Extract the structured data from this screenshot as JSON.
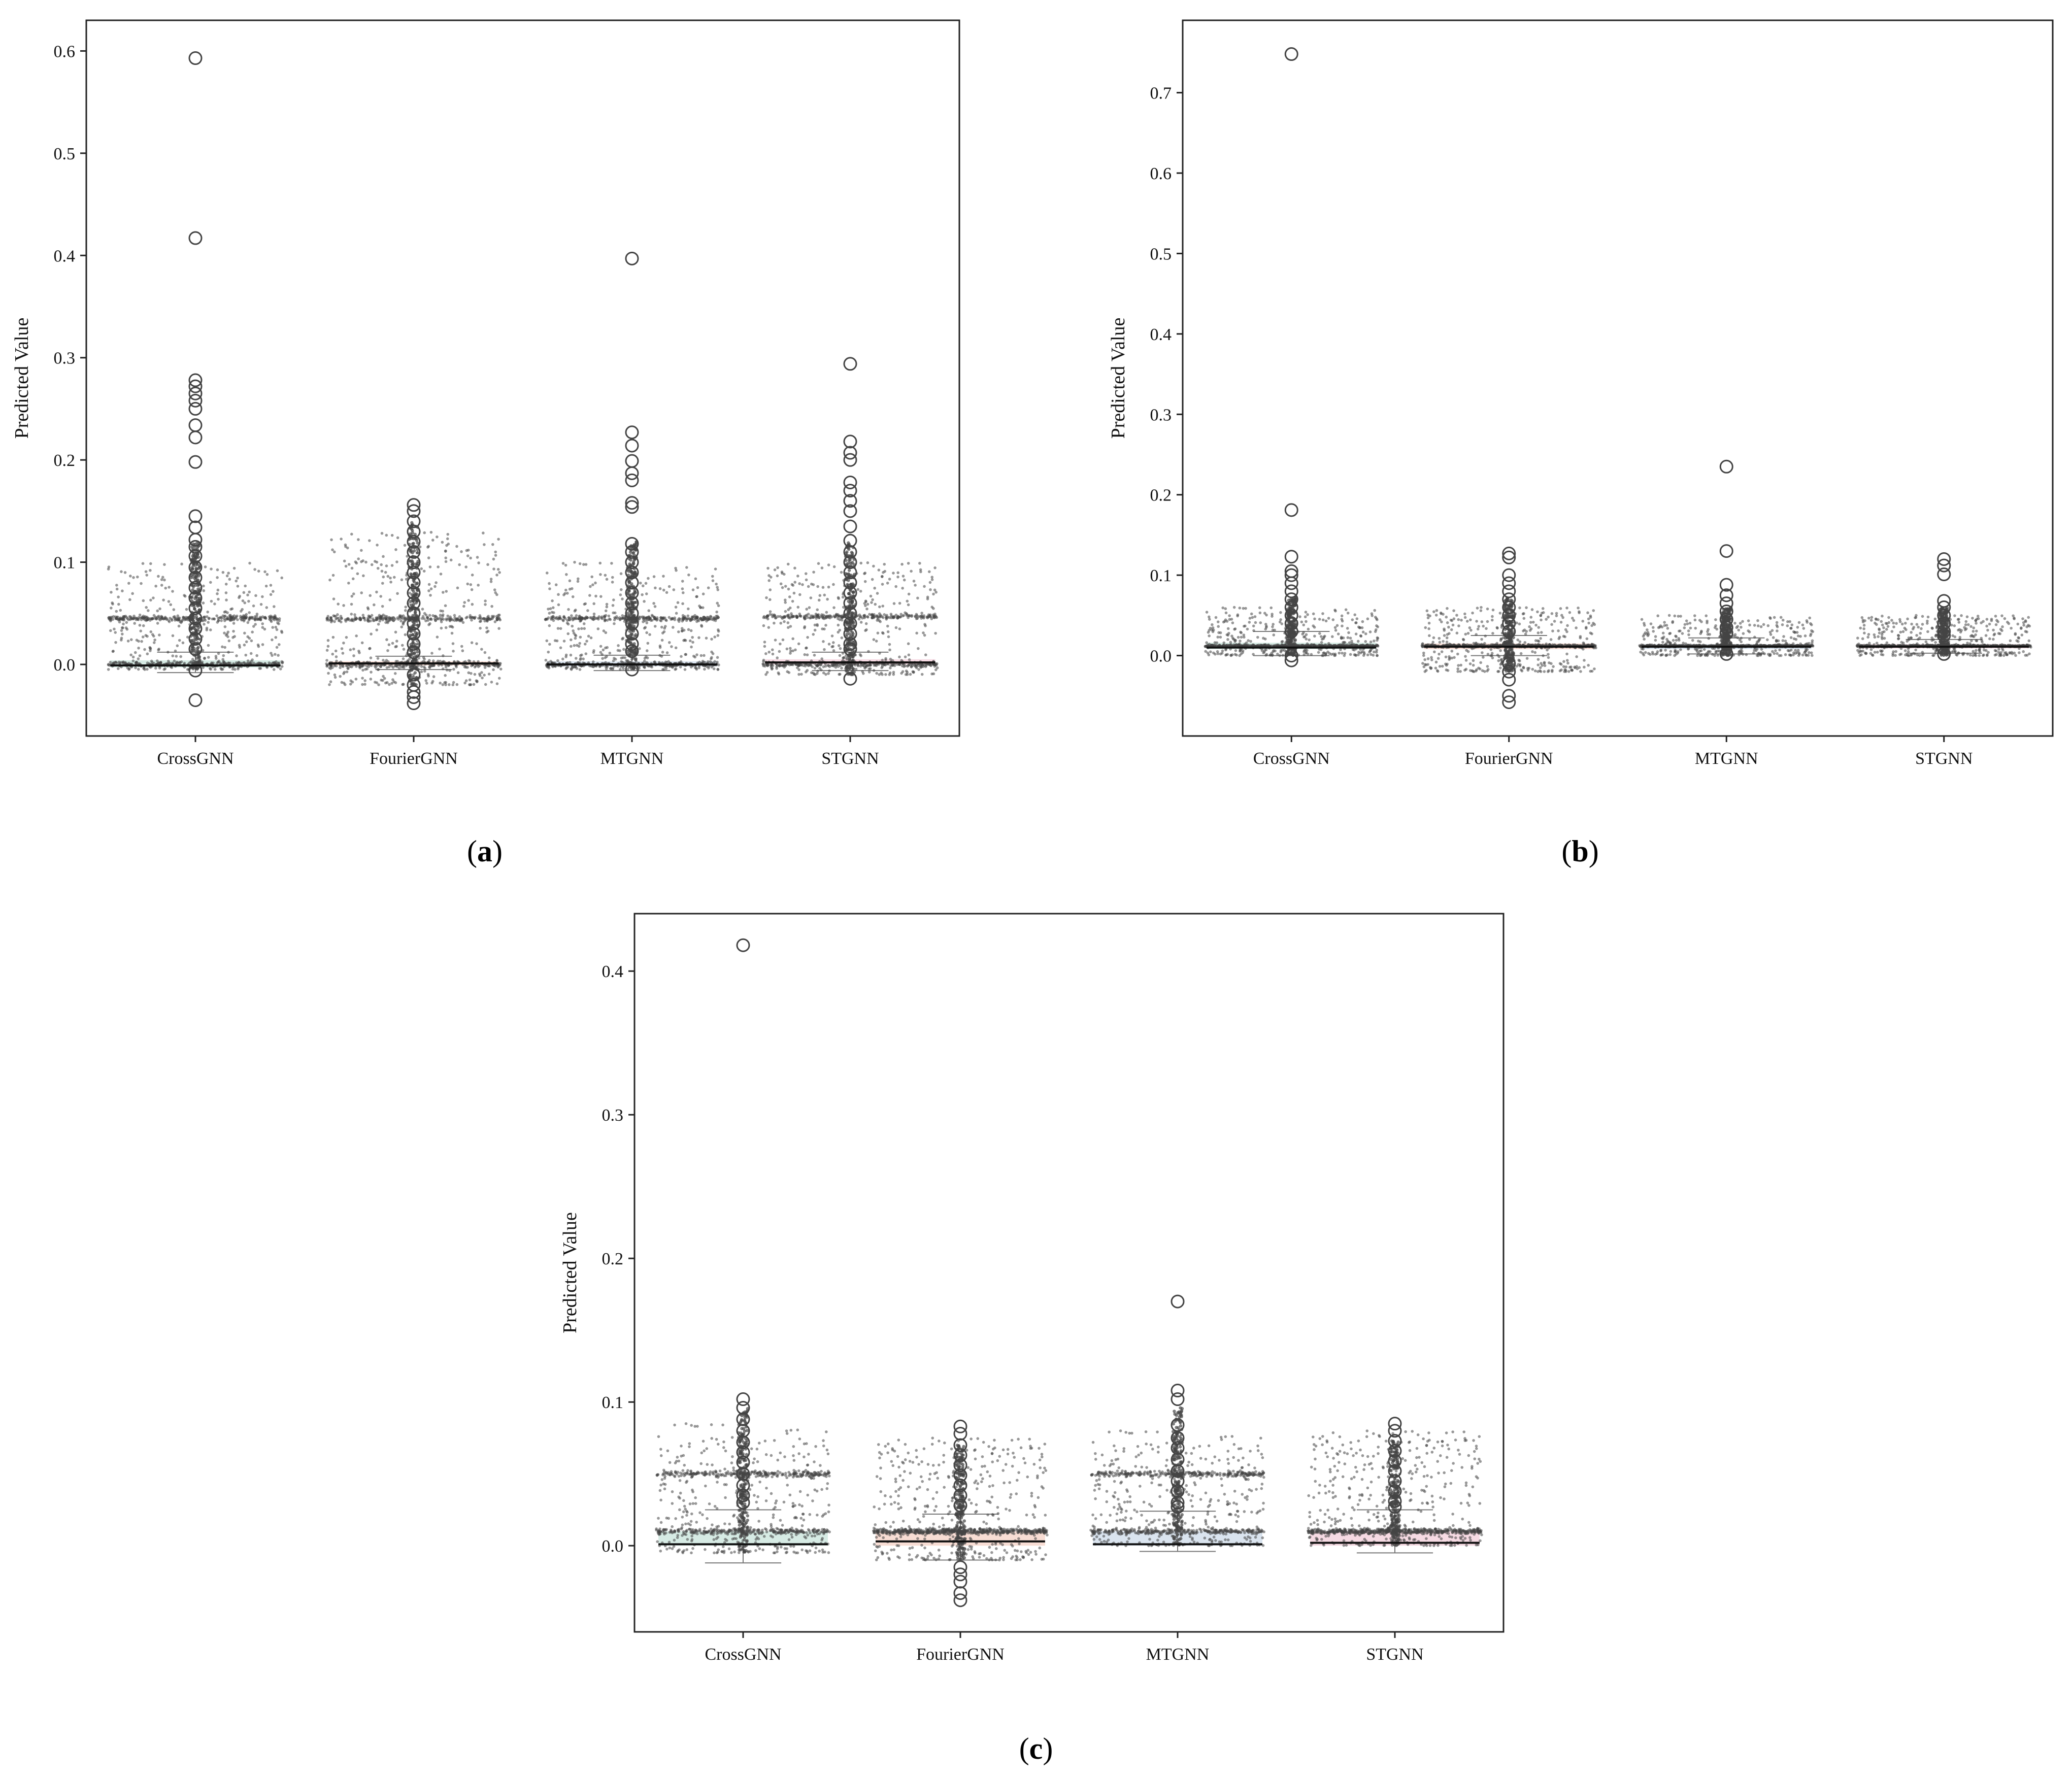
{
  "chart_data": [
    {
      "type": "box",
      "panel": "a",
      "caption": {
        "open": "(",
        "letter": "a",
        "close": ")"
      },
      "ylabel": "Predicted Value",
      "ylim": [
        -0.07,
        0.63
      ],
      "yticks": [
        0.0,
        0.1,
        0.2,
        0.3,
        0.4,
        0.5,
        0.6
      ],
      "ytick_labels": [
        "0.0",
        "0.1",
        "0.2",
        "0.3",
        "0.4",
        "0.5",
        "0.6"
      ],
      "categories": [
        "CrossGNN",
        "FourierGNN",
        "MTGNN",
        "STGNN"
      ],
      "box_colors": [
        "#cfe8df",
        "#f7d7cc",
        "#d3dfec",
        "#f5d3de"
      ],
      "series": [
        {
          "name": "CrossGNN",
          "median": -0.001,
          "q1": -0.003,
          "q3": 0.004,
          "whisker_low": -0.008,
          "whisker_high": 0.012,
          "cluster_levels": [
            0.0,
            0.045
          ],
          "scatter_range": [
            -0.005,
            0.1
          ],
          "outliers": [
            0.593,
            0.417,
            0.278,
            0.272,
            0.265,
            0.258,
            0.25,
            0.234,
            0.222,
            0.198,
            0.145,
            0.134,
            0.122,
            0.115,
            0.106,
            0.095,
            0.085,
            0.075,
            0.065,
            0.055,
            0.045,
            0.035,
            0.025,
            0.015,
            -0.006,
            -0.035
          ]
        },
        {
          "name": "FourierGNN",
          "median": 0.001,
          "q1": -0.001,
          "q3": 0.003,
          "whisker_low": -0.005,
          "whisker_high": 0.008,
          "cluster_levels": [
            0.0,
            0.045
          ],
          "scatter_range": [
            -0.02,
            0.13
          ],
          "outliers": [
            0.156,
            0.15,
            0.14,
            0.13,
            0.12,
            0.11,
            0.1,
            0.09,
            0.08,
            0.07,
            0.06,
            0.05,
            0.04,
            0.03,
            0.02,
            0.012,
            -0.01,
            -0.02,
            -0.027,
            -0.032,
            -0.038
          ]
        },
        {
          "name": "MTGNN",
          "median": 0.0,
          "q1": -0.002,
          "q3": 0.003,
          "whisker_low": -0.006,
          "whisker_high": 0.009,
          "cluster_levels": [
            0.0,
            0.045
          ],
          "scatter_range": [
            -0.005,
            0.1
          ],
          "outliers": [
            0.397,
            0.227,
            0.214,
            0.199,
            0.187,
            0.18,
            0.158,
            0.154,
            0.118,
            0.11,
            0.1,
            0.09,
            0.08,
            0.07,
            0.06,
            0.05,
            0.04,
            0.03,
            0.02,
            0.013,
            -0.005
          ]
        },
        {
          "name": "STGNN",
          "median": 0.002,
          "q1": 0.0,
          "q3": 0.005,
          "whisker_low": -0.006,
          "whisker_high": 0.012,
          "cluster_levels": [
            0.0,
            0.047
          ],
          "scatter_range": [
            -0.01,
            0.1
          ],
          "outliers": [
            0.294,
            0.218,
            0.207,
            0.2,
            0.178,
            0.17,
            0.16,
            0.15,
            0.135,
            0.121,
            0.11,
            0.1,
            0.09,
            0.08,
            0.07,
            0.06,
            0.05,
            0.04,
            0.03,
            0.02,
            0.015,
            -0.014
          ]
        }
      ]
    },
    {
      "type": "box",
      "panel": "b",
      "caption": {
        "open": "(",
        "letter": "b",
        "close": ")"
      },
      "ylabel": "Predicted Value",
      "ylim": [
        -0.1,
        0.79
      ],
      "yticks": [
        0.0,
        0.1,
        0.2,
        0.3,
        0.4,
        0.5,
        0.6,
        0.7
      ],
      "ytick_labels": [
        "0.0",
        "0.1",
        "0.2",
        "0.3",
        "0.4",
        "0.5",
        "0.6",
        "0.7"
      ],
      "categories": [
        "CrossGNN",
        "FourierGNN",
        "MTGNN",
        "STGNN"
      ],
      "box_colors": [
        "#cfe8df",
        "#f7d7cc",
        "#d3dfec",
        "#f5d3de"
      ],
      "series": [
        {
          "name": "CrossGNN",
          "median": 0.01,
          "q1": 0.008,
          "q3": 0.016,
          "whisker_low": 0.0,
          "whisker_high": 0.03,
          "cluster_levels": [
            0.012
          ],
          "scatter_range": [
            0.0,
            0.06
          ],
          "outliers": [
            0.748,
            0.181,
            0.123,
            0.105,
            0.1,
            0.09,
            0.08,
            0.07,
            0.06,
            0.05,
            0.04,
            0.03,
            0.0,
            -0.006
          ]
        },
        {
          "name": "FourierGNN",
          "median": 0.011,
          "q1": 0.008,
          "q3": 0.015,
          "whisker_low": 0.0,
          "whisker_high": 0.025,
          "cluster_levels": [
            0.012
          ],
          "scatter_range": [
            -0.02,
            0.06
          ],
          "outliers": [
            0.127,
            0.122,
            0.1,
            0.09,
            0.08,
            0.07,
            0.06,
            0.05,
            0.04,
            0.03,
            -0.01,
            -0.02,
            -0.03,
            -0.05,
            -0.058
          ]
        },
        {
          "name": "MTGNN",
          "median": 0.011,
          "q1": 0.008,
          "q3": 0.014,
          "whisker_low": 0.002,
          "whisker_high": 0.022,
          "cluster_levels": [
            0.012
          ],
          "scatter_range": [
            0.0,
            0.05
          ],
          "outliers": [
            0.235,
            0.13,
            0.088,
            0.075,
            0.065,
            0.055,
            0.045,
            0.035,
            0.028,
            0.002
          ]
        },
        {
          "name": "STGNN",
          "median": 0.011,
          "q1": 0.009,
          "q3": 0.014,
          "whisker_low": 0.003,
          "whisker_high": 0.02,
          "cluster_levels": [
            0.012
          ],
          "scatter_range": [
            0.0,
            0.05
          ],
          "outliers": [
            0.12,
            0.112,
            0.101,
            0.068,
            0.06,
            0.05,
            0.04,
            0.03,
            0.025,
            0.002
          ]
        }
      ]
    },
    {
      "type": "box",
      "panel": "c",
      "caption": {
        "open": "(",
        "letter": "c",
        "close": ")"
      },
      "ylabel": "Predicted Value",
      "ylim": [
        -0.06,
        0.44
      ],
      "yticks": [
        0.0,
        0.1,
        0.2,
        0.3,
        0.4
      ],
      "ytick_labels": [
        "0.0",
        "0.1",
        "0.2",
        "0.3",
        "0.4"
      ],
      "categories": [
        "CrossGNN",
        "FourierGNN",
        "MTGNN",
        "STGNN"
      ],
      "box_colors": [
        "#cfe8df",
        "#f7d7cc",
        "#d3dfec",
        "#f5d3de"
      ],
      "series": [
        {
          "name": "CrossGNN",
          "median": 0.001,
          "q1": 0.0,
          "q3": 0.01,
          "whisker_low": -0.012,
          "whisker_high": 0.025,
          "cluster_levels": [
            0.01,
            0.05
          ],
          "scatter_range": [
            -0.005,
            0.085
          ],
          "outliers": [
            0.418,
            0.102,
            0.096,
            0.088,
            0.08,
            0.072,
            0.065,
            0.058,
            0.05,
            0.042,
            0.035,
            0.03
          ]
        },
        {
          "name": "FourierGNN",
          "median": 0.003,
          "q1": 0.0,
          "q3": 0.01,
          "whisker_low": -0.01,
          "whisker_high": 0.022,
          "cluster_levels": [
            0.01
          ],
          "scatter_range": [
            -0.01,
            0.075
          ],
          "outliers": [
            0.083,
            0.078,
            0.07,
            0.063,
            0.056,
            0.049,
            0.042,
            0.035,
            0.028,
            -0.015,
            -0.02,
            -0.025,
            -0.033,
            -0.038
          ]
        },
        {
          "name": "MTGNN",
          "median": 0.001,
          "q1": 0.0,
          "q3": 0.01,
          "whisker_low": -0.004,
          "whisker_high": 0.024,
          "cluster_levels": [
            0.01,
            0.05
          ],
          "scatter_range": [
            0.0,
            0.08
          ],
          "outliers": [
            0.17,
            0.108,
            0.102,
            0.084,
            0.075,
            0.068,
            0.06,
            0.052,
            0.045,
            0.038,
            0.03,
            0.027
          ]
        },
        {
          "name": "STGNN",
          "median": 0.002,
          "q1": 0.0,
          "q3": 0.01,
          "whisker_low": -0.005,
          "whisker_high": 0.025,
          "cluster_levels": [
            0.01
          ],
          "scatter_range": [
            0.0,
            0.08
          ],
          "outliers": [
            0.085,
            0.08,
            0.073,
            0.066,
            0.059,
            0.052,
            0.045,
            0.038,
            0.031,
            0.027
          ]
        }
      ]
    }
  ]
}
